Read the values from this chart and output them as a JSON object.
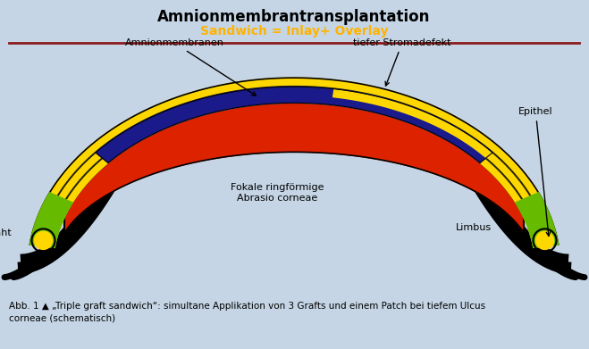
{
  "title": "Amnionmembrantransplantation",
  "subtitle": "Sandwich = Inlay+ Overlay",
  "subtitle_color": "#FFB300",
  "title_color": "#000000",
  "bg_color": "#C5D5E5",
  "caption_bg": "#FFFFFF",
  "red_line_color": "#8B1A1A",
  "stroma_color": "#DD2200",
  "yellow_color": "#FFD700",
  "blue_color": "#1A1A8B",
  "green_color": "#66BB00",
  "black_color": "#000000",
  "caption_text": "Abb. 1 ▲ „Triple graft sandwich“: simultane Applikation von 3 Grafts und einem Patch bei tiefem Ulcus\ncorneae (schematisch)"
}
